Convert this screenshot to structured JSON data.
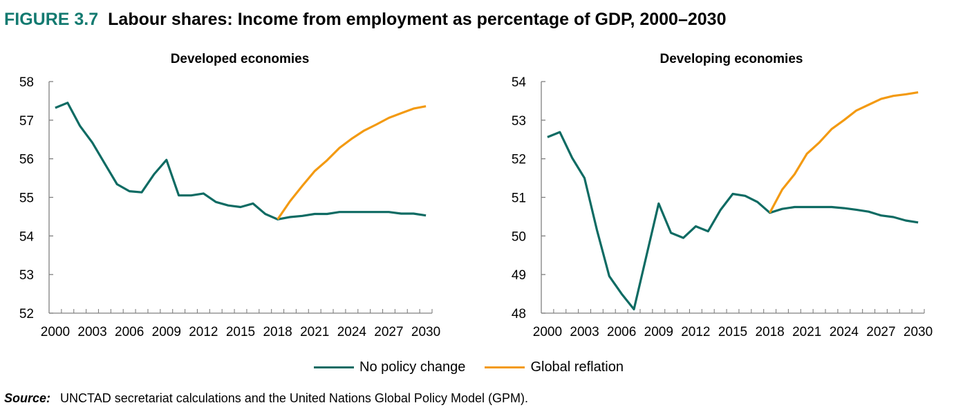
{
  "figure": {
    "label": "FIGURE 3.7",
    "title": "Labour shares: Income from employment as percentage of GDP, 2000–2030"
  },
  "colors": {
    "no_policy_change": "#0e6b63",
    "global_reflation": "#f39a12",
    "figure_label": "#137a70",
    "axis": "#7f7f7f"
  },
  "legend": [
    {
      "name": "No policy change",
      "color": "#0e6b63"
    },
    {
      "name": "Global reflation",
      "color": "#f39a12"
    }
  ],
  "source": {
    "label": "Source:",
    "text": "UNCTAD secretariat calculations and the United Nations Global Policy Model (GPM)."
  },
  "chart_data": [
    {
      "type": "line",
      "title": "Developed economies",
      "xlabel": "",
      "ylabel": "",
      "x": [
        2000,
        2001,
        2002,
        2003,
        2004,
        2005,
        2006,
        2007,
        2008,
        2009,
        2010,
        2011,
        2012,
        2013,
        2014,
        2015,
        2016,
        2017,
        2018,
        2019,
        2020,
        2021,
        2022,
        2023,
        2024,
        2025,
        2026,
        2027,
        2028,
        2029,
        2030
      ],
      "x_tick_labels": [
        "2000",
        "2003",
        "2006",
        "2009",
        "2012",
        "2015",
        "2018",
        "2021",
        "2024",
        "2027",
        "2030"
      ],
      "ylim": [
        52,
        58
      ],
      "y_ticks": [
        52,
        53,
        54,
        55,
        56,
        57,
        58
      ],
      "grid": false,
      "legend_position": "bottom-center",
      "series": [
        {
          "name": "No policy change",
          "color": "#0e6b63",
          "start_year": 2000,
          "values": [
            57.32,
            57.45,
            56.85,
            56.42,
            55.88,
            55.34,
            55.16,
            55.13,
            55.6,
            55.97,
            55.05,
            55.05,
            55.1,
            54.88,
            54.79,
            54.75,
            54.84,
            54.57,
            54.43,
            54.49,
            54.52,
            54.57,
            54.57,
            54.62,
            54.62,
            54.62,
            54.62,
            54.62,
            54.58,
            54.58,
            54.53
          ]
        },
        {
          "name": "Global reflation",
          "color": "#f39a12",
          "start_year": 2018,
          "values": [
            54.43,
            54.9,
            55.3,
            55.68,
            55.96,
            56.28,
            56.52,
            56.73,
            56.89,
            57.06,
            57.18,
            57.3,
            57.36
          ]
        }
      ]
    },
    {
      "type": "line",
      "title": "Developing economies",
      "xlabel": "",
      "ylabel": "",
      "x": [
        2000,
        2001,
        2002,
        2003,
        2004,
        2005,
        2006,
        2007,
        2008,
        2009,
        2010,
        2011,
        2012,
        2013,
        2014,
        2015,
        2016,
        2017,
        2018,
        2019,
        2020,
        2021,
        2022,
        2023,
        2024,
        2025,
        2026,
        2027,
        2028,
        2029,
        2030
      ],
      "x_tick_labels": [
        "2000",
        "2003",
        "2006",
        "2009",
        "2012",
        "2015",
        "2018",
        "2021",
        "2024",
        "2027",
        "2030"
      ],
      "ylim": [
        48,
        54
      ],
      "y_ticks": [
        48,
        49,
        50,
        51,
        52,
        53,
        54
      ],
      "grid": false,
      "legend_position": "bottom-center",
      "series": [
        {
          "name": "No policy change",
          "color": "#0e6b63",
          "start_year": 2000,
          "values": [
            52.56,
            52.69,
            52.02,
            51.5,
            50.16,
            48.96,
            48.5,
            48.1,
            49.47,
            50.84,
            50.08,
            49.95,
            50.25,
            50.12,
            50.67,
            51.09,
            51.04,
            50.88,
            50.6,
            50.7,
            50.75,
            50.75,
            50.75,
            50.75,
            50.72,
            50.68,
            50.63,
            50.53,
            50.49,
            50.4,
            50.35
          ]
        },
        {
          "name": "Global reflation",
          "color": "#f39a12",
          "start_year": 2018,
          "values": [
            50.6,
            51.2,
            51.6,
            52.13,
            52.42,
            52.77,
            53.0,
            53.25,
            53.4,
            53.55,
            53.63,
            53.67,
            53.72
          ]
        }
      ]
    }
  ]
}
